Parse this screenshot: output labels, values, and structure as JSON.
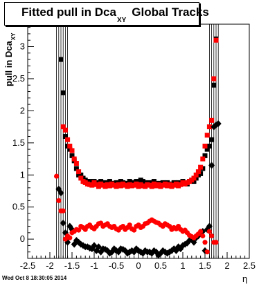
{
  "title": {
    "main": "Fitted pull in Dca",
    "sub": "XY",
    "rest": "Global Tracks"
  },
  "stamp": "Wed Oct  8 18:30:05 2014",
  "chart_data": {
    "type": "scatter",
    "title": "Fitted pull in Dca XY  Global Tracks",
    "ylabel": "pull in Dca",
    "ylabel_sub": "XY",
    "xlabel": "η",
    "xlim": [
      -2.5,
      2.5
    ],
    "ylim": [
      -0.3,
      3.35
    ],
    "x_ticks": [
      "-2.5",
      "-2",
      "-1.5",
      "-1",
      "-0.5",
      "0",
      "0.5",
      "1",
      "1.5",
      "2",
      "2.5"
    ],
    "y_ticks": [
      "0",
      "0.5",
      "1",
      "1.5",
      "2",
      "2.5",
      "3"
    ],
    "grid": false,
    "series": [
      {
        "marker": "square",
        "color": "#000000",
        "x": [
          -1.75,
          -1.7,
          -1.65,
          -1.6,
          -1.55,
          -1.5,
          -1.45,
          -1.4,
          -1.35,
          -1.3,
          -1.25,
          -1.2,
          -1.15,
          -1.1,
          -1.05,
          -1.0,
          -0.95,
          -0.9,
          -0.85,
          -0.8,
          -0.75,
          -0.7,
          -0.65,
          -0.6,
          -0.55,
          -0.5,
          -0.45,
          -0.4,
          -0.35,
          -0.3,
          -0.25,
          -0.2,
          -0.15,
          -0.1,
          -0.05,
          0.0,
          0.05,
          0.1,
          0.15,
          0.2,
          0.25,
          0.3,
          0.35,
          0.4,
          0.45,
          0.5,
          0.55,
          0.6,
          0.65,
          0.7,
          0.75,
          0.8,
          0.85,
          0.9,
          0.95,
          1.0,
          1.05,
          1.1,
          1.15,
          1.2,
          1.25,
          1.3,
          1.35,
          1.4,
          1.45,
          1.5,
          1.55,
          1.6,
          1.65,
          1.7,
          1.75
        ],
        "y": [
          2.8,
          2.28,
          1.6,
          1.45,
          1.4,
          1.3,
          1.22,
          1.1,
          1.0,
          1.0,
          0.95,
          0.92,
          0.9,
          0.9,
          0.88,
          0.9,
          0.88,
          0.87,
          0.9,
          0.88,
          0.86,
          0.88,
          0.9,
          0.87,
          0.86,
          0.88,
          0.86,
          0.9,
          0.88,
          0.85,
          0.87,
          0.9,
          0.88,
          0.86,
          0.9,
          0.88,
          0.92,
          0.9,
          0.88,
          0.86,
          0.88,
          0.87,
          0.9,
          0.85,
          0.87,
          0.85,
          0.88,
          0.86,
          0.88,
          0.84,
          0.86,
          0.88,
          0.86,
          0.88,
          0.86,
          0.9,
          0.88,
          0.86,
          0.9,
          0.92,
          0.9,
          0.95,
          1.0,
          1.02,
          1.1,
          1.3,
          1.4,
          1.45,
          1.55,
          2.4,
          3.12
        ]
      },
      {
        "marker": "square",
        "color": "#ff0000",
        "x": [
          -1.7,
          -1.65,
          -1.6,
          -1.55,
          -1.5,
          -1.45,
          -1.4,
          -1.35,
          -1.3,
          -1.25,
          -1.2,
          -1.15,
          -1.1,
          -1.05,
          -1.0,
          -0.95,
          -0.9,
          -0.85,
          -0.8,
          -0.75,
          -0.7,
          -0.65,
          -0.6,
          -0.55,
          -0.5,
          -0.45,
          -0.4,
          -0.35,
          -0.3,
          -0.25,
          -0.2,
          -0.15,
          -0.1,
          -0.05,
          0.0,
          0.05,
          0.1,
          0.15,
          0.2,
          0.25,
          0.3,
          0.35,
          0.4,
          0.45,
          0.5,
          0.55,
          0.6,
          0.65,
          0.7,
          0.75,
          0.8,
          0.85,
          0.9,
          0.95,
          1.0,
          1.05,
          1.1,
          1.15,
          1.2,
          1.25,
          1.3,
          1.35,
          1.4,
          1.45,
          1.5,
          1.55,
          1.6,
          1.65,
          1.7,
          1.75
        ],
        "y": [
          1.75,
          1.7,
          1.55,
          1.45,
          1.38,
          1.25,
          1.18,
          1.05,
          0.95,
          0.9,
          0.88,
          0.86,
          0.85,
          0.84,
          0.88,
          0.85,
          0.82,
          0.86,
          0.84,
          0.82,
          0.85,
          0.83,
          0.86,
          0.84,
          0.82,
          0.85,
          0.83,
          0.86,
          0.84,
          0.82,
          0.85,
          0.83,
          0.84,
          0.86,
          0.82,
          0.85,
          0.83,
          0.82,
          0.85,
          0.84,
          0.82,
          0.86,
          0.83,
          0.85,
          0.82,
          0.84,
          0.86,
          0.83,
          0.85,
          0.82,
          0.84,
          0.86,
          0.83,
          0.85,
          0.88,
          0.86,
          0.88,
          0.9,
          0.92,
          0.95,
          1.0,
          1.05,
          1.12,
          1.25,
          1.45,
          1.62,
          1.75,
          1.85,
          2.5,
          3.1
        ]
      },
      {
        "marker": "diamond",
        "color": "#000000",
        "x": [
          -1.8,
          -1.75,
          -1.7,
          -1.65,
          -1.6,
          -1.55,
          -1.5,
          -1.45,
          -1.4,
          -1.35,
          -1.3,
          -1.25,
          -1.2,
          -1.15,
          -1.1,
          -1.05,
          -1.0,
          -0.95,
          -0.9,
          -0.85,
          -0.8,
          -0.75,
          -0.7,
          -0.65,
          -0.6,
          -0.55,
          -0.5,
          -0.45,
          -0.4,
          -0.35,
          -0.3,
          -0.25,
          -0.2,
          -0.15,
          -0.1,
          -0.05,
          0.0,
          0.05,
          0.1,
          0.15,
          0.2,
          0.25,
          0.3,
          0.35,
          0.4,
          0.45,
          0.5,
          0.55,
          0.6,
          0.65,
          0.7,
          0.75,
          0.8,
          0.85,
          0.9,
          0.95,
          1.0,
          1.05,
          1.1,
          1.15,
          1.2,
          1.25,
          1.3,
          1.35,
          1.4,
          1.45,
          1.5,
          1.55,
          1.6,
          1.65,
          1.7,
          1.75,
          1.8
        ],
        "y": [
          0.78,
          0.72,
          0.25,
          0.1,
          -0.05,
          0.2,
          0.15,
          -0.08,
          -0.02,
          -0.05,
          -0.08,
          -0.1,
          -0.12,
          -0.12,
          -0.14,
          -0.15,
          -0.1,
          -0.18,
          -0.12,
          -0.2,
          -0.15,
          -0.16,
          -0.18,
          -0.22,
          -0.2,
          -0.15,
          -0.18,
          -0.2,
          -0.15,
          -0.16,
          -0.18,
          -0.22,
          -0.2,
          -0.18,
          -0.2,
          -0.15,
          -0.18,
          -0.2,
          -0.22,
          -0.18,
          -0.2,
          -0.2,
          -0.22,
          -0.18,
          -0.2,
          -0.25,
          -0.22,
          -0.18,
          -0.2,
          -0.22,
          -0.2,
          -0.18,
          -0.15,
          -0.18,
          -0.12,
          -0.15,
          -0.1,
          -0.08,
          -0.06,
          -0.02,
          0.0,
          -0.05,
          0.02,
          0.05,
          0.1,
          0.12,
          -0.18,
          0.15,
          0.2,
          1.15,
          1.75,
          1.78,
          1.8
        ]
      },
      {
        "marker": "circle",
        "color": "#ff0000",
        "x": [
          -1.85,
          -1.8,
          -1.75,
          -1.7,
          -1.65,
          -1.6,
          -1.55,
          -1.5,
          -1.45,
          -1.4,
          -1.35,
          -1.3,
          -1.25,
          -1.2,
          -1.15,
          -1.1,
          -1.05,
          -1.0,
          -0.95,
          -0.9,
          -0.85,
          -0.8,
          -0.75,
          -0.7,
          -0.65,
          -0.6,
          -0.55,
          -0.5,
          -0.45,
          -0.4,
          -0.35,
          -0.3,
          -0.25,
          -0.2,
          -0.15,
          -0.1,
          -0.05,
          0.0,
          0.05,
          0.1,
          0.15,
          0.2,
          0.25,
          0.3,
          0.35,
          0.4,
          0.45,
          0.5,
          0.55,
          0.6,
          0.65,
          0.7,
          0.75,
          0.8,
          0.85,
          0.9,
          0.95,
          1.0,
          1.05,
          1.1,
          1.15,
          1.2,
          1.25,
          1.3,
          1.35,
          1.4,
          1.45,
          1.5,
          1.55,
          1.6,
          1.65,
          1.7,
          1.75
        ],
        "y": [
          0.98,
          0.6,
          0.44,
          0.44,
          0.0,
          0.05,
          0.02,
          0.1,
          0.12,
          0.15,
          0.14,
          0.2,
          0.18,
          0.15,
          0.2,
          0.22,
          0.18,
          0.16,
          0.2,
          0.24,
          0.25,
          0.2,
          0.22,
          0.24,
          0.2,
          0.18,
          0.2,
          0.16,
          0.14,
          0.18,
          0.2,
          0.15,
          0.18,
          0.22,
          0.16,
          0.14,
          0.2,
          0.22,
          0.18,
          0.2,
          0.24,
          0.25,
          0.28,
          0.3,
          0.28,
          0.26,
          0.25,
          0.22,
          0.2,
          0.24,
          0.22,
          0.2,
          0.15,
          0.18,
          0.16,
          0.2,
          0.15,
          0.12,
          0.14,
          0.1,
          0.06,
          0.04,
          0.02,
          0.05,
          0.08,
          0.12,
          0.05,
          -0.05,
          -0.2,
          0.12,
          0.05,
          -0.05,
          -0.05
        ]
      }
    ]
  }
}
